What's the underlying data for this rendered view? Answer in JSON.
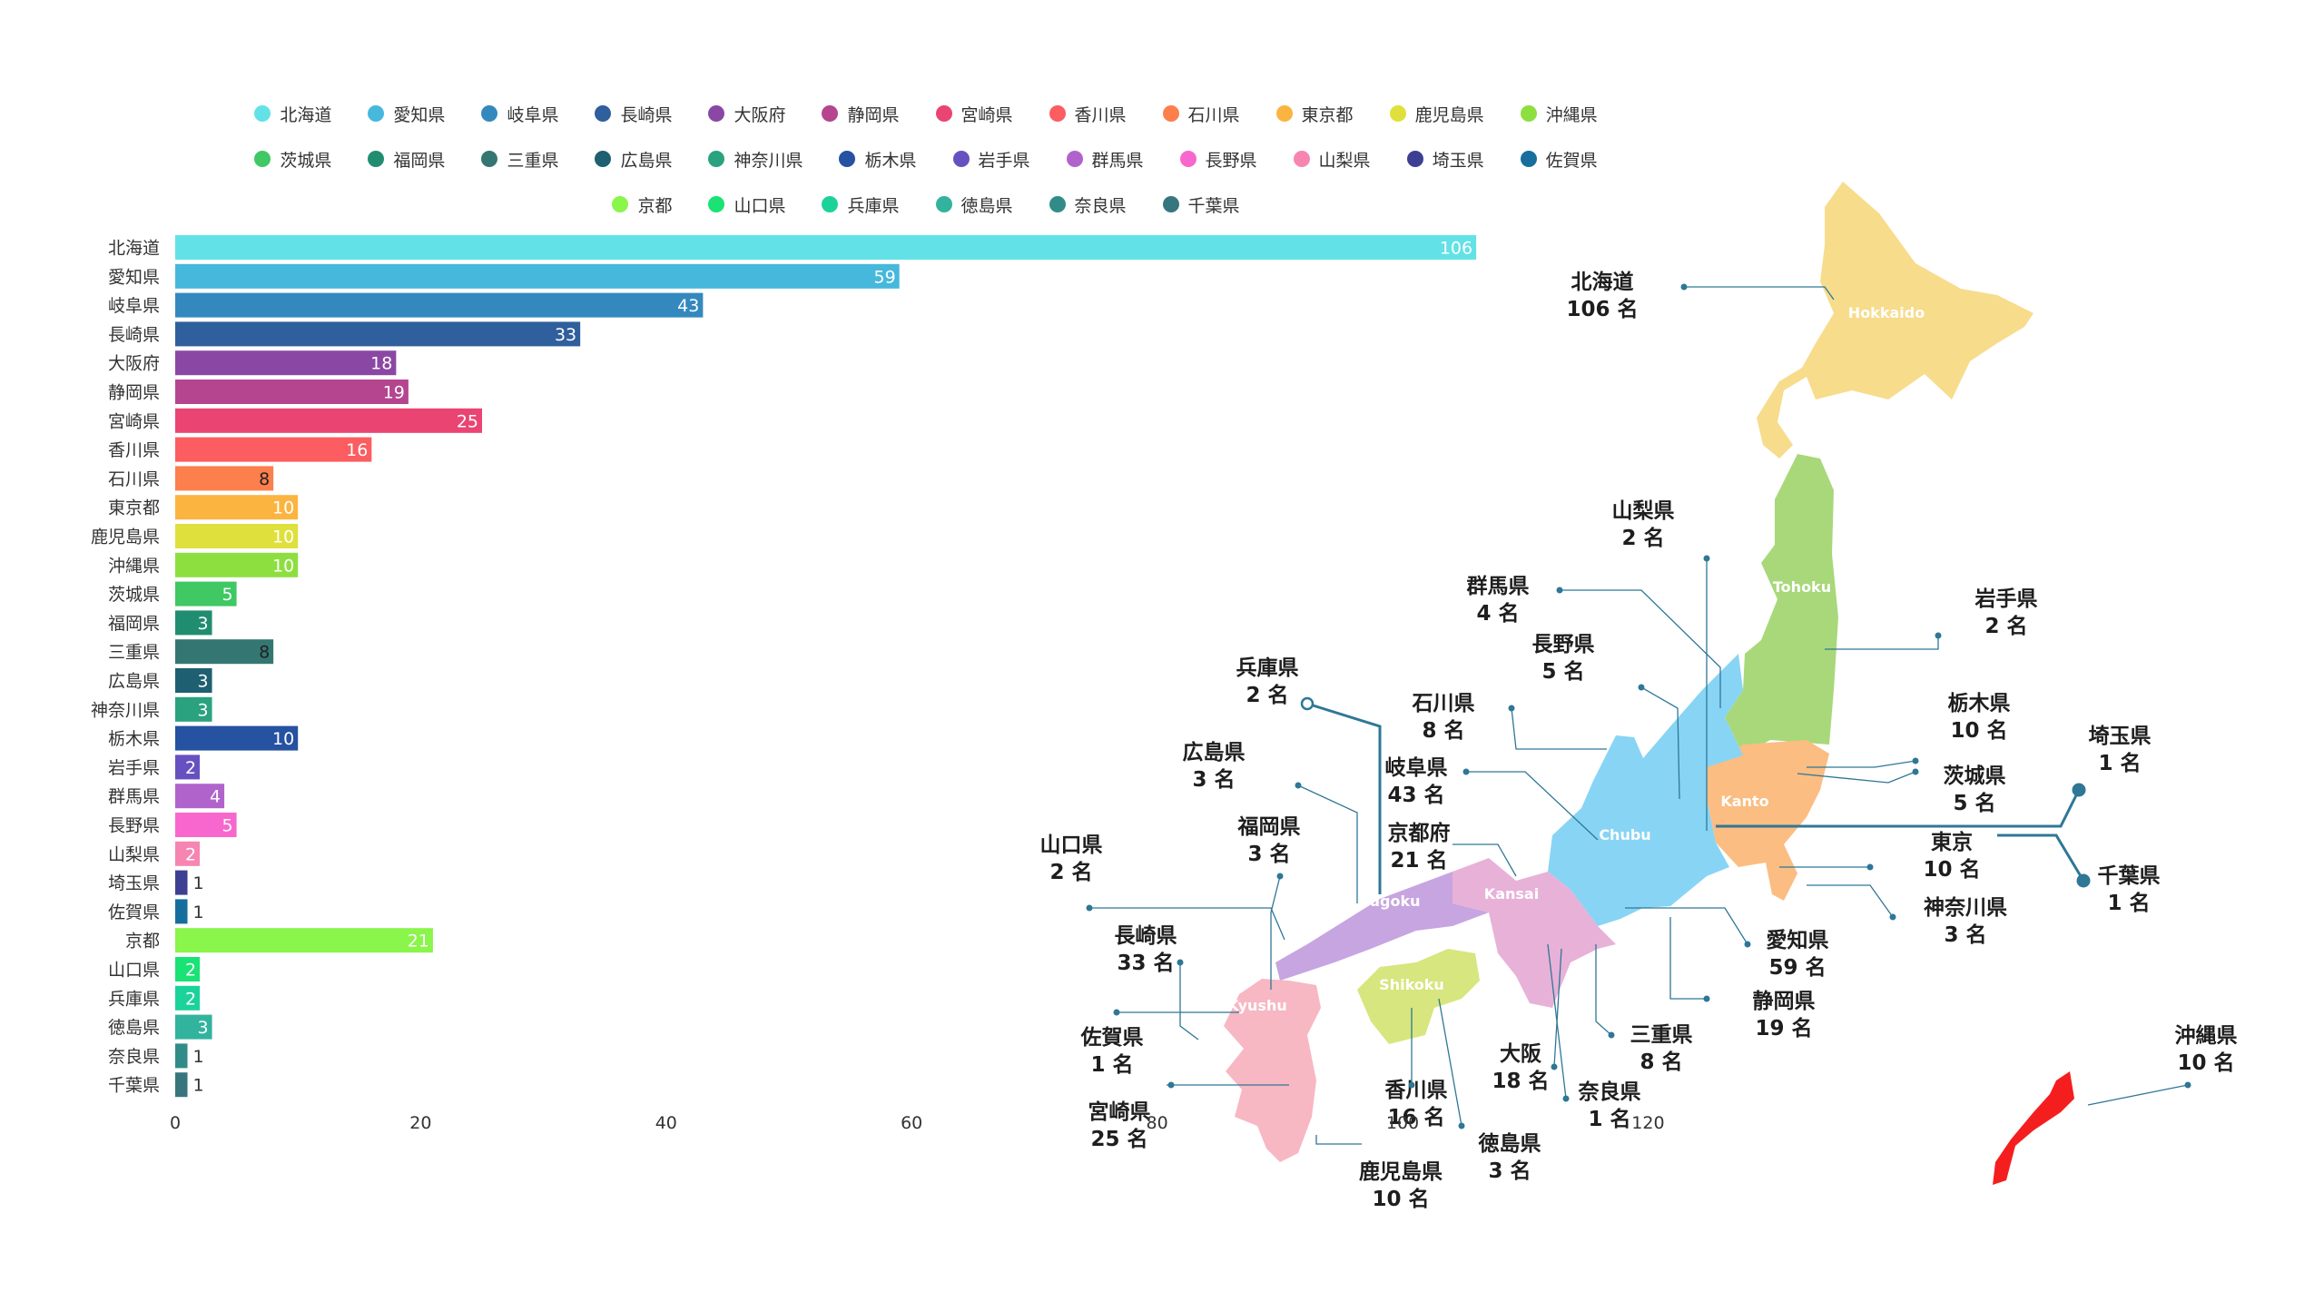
{
  "chart_data": [
    {
      "type": "bar",
      "orientation": "horizontal",
      "categories": [
        "北海道",
        "愛知県",
        "岐阜県",
        "長崎県",
        "大阪府",
        "静岡県",
        "宮崎県",
        "香川県",
        "石川県",
        "東京都",
        "鹿児島県",
        "沖縄県",
        "茨城県",
        "福岡県",
        "三重県",
        "広島県",
        "神奈川県",
        "栃木県",
        "岩手県",
        "群馬県",
        "長野県",
        "山梨県",
        "埼玉県",
        "佐賀県",
        "京都",
        "山口県",
        "兵庫県",
        "徳島県",
        "奈良県",
        "千葉県"
      ],
      "values": [
        106,
        59,
        43,
        33,
        18,
        19,
        25,
        16,
        8,
        10,
        10,
        10,
        5,
        3,
        8,
        3,
        3,
        10,
        2,
        4,
        5,
        2,
        1,
        1,
        21,
        2,
        2,
        3,
        1,
        1
      ],
      "colors": [
        "#62e2e6",
        "#46b8dc",
        "#3389be",
        "#2f5f9c",
        "#8a48a4",
        "#b5458f",
        "#ea4473",
        "#fb5d60",
        "#fc7f4c",
        "#fcb440",
        "#dfe03c",
        "#8ddf3f",
        "#3fc863",
        "#218d70",
        "#347772",
        "#1f5f72",
        "#2ba27f",
        "#2552a1",
        "#6751c0",
        "#b163cc",
        "#f867cd",
        "#f785b2",
        "#3d3f92",
        "#166e9e",
        "#8af54b",
        "#1ae275",
        "#1bd39a",
        "#32b39e",
        "#318c89",
        "#38767e"
      ],
      "xticks": [
        "0",
        "20",
        "40",
        "60",
        "80",
        "100",
        "120"
      ],
      "xlim": [
        0,
        120
      ],
      "legend": "top",
      "grid": false
    }
  ],
  "map": {
    "regions": [
      {
        "name": "Hokkaido",
        "color": "#f7dc8c"
      },
      {
        "name": "Tohoku",
        "color": "#a8d87a"
      },
      {
        "name": "Kanto",
        "color": "#fbbd82"
      },
      {
        "name": "Chubu",
        "color": "#88d4f5"
      },
      {
        "name": "Kansai",
        "color": "#e8b1d8"
      },
      {
        "name": "Chugoku",
        "color": "#c7a5e0"
      },
      {
        "name": "Shikoku",
        "color": "#d7e67e"
      },
      {
        "name": "Kyushu",
        "color": "#f7b7c3"
      },
      {
        "name": "",
        "color": "#f51e1e"
      }
    ],
    "callouts": [
      {
        "name": "北海道",
        "count": "106 名"
      },
      {
        "name": "山梨県",
        "count": "2 名"
      },
      {
        "name": "群馬県",
        "count": "4 名"
      },
      {
        "name": "岩手県",
        "count": "2 名"
      },
      {
        "name": "長野県",
        "count": "5 名"
      },
      {
        "name": "兵庫県",
        "count": "2 名"
      },
      {
        "name": "石川県",
        "count": "8 名"
      },
      {
        "name": "栃木県",
        "count": "10 名"
      },
      {
        "name": "埼玉県",
        "count": "1 名"
      },
      {
        "name": "岐阜県",
        "count": "43 名"
      },
      {
        "name": "広島県",
        "count": "3 名"
      },
      {
        "name": "茨城県",
        "count": "5 名"
      },
      {
        "name": "京都府",
        "count": "21 名"
      },
      {
        "name": "福岡県",
        "count": "3 名"
      },
      {
        "name": "山口県",
        "count": "2 名"
      },
      {
        "name": "東京",
        "count": "10 名"
      },
      {
        "name": "千葉県",
        "count": "1 名"
      },
      {
        "name": "神奈川県",
        "count": "3 名"
      },
      {
        "name": "長崎県",
        "count": "33 名"
      },
      {
        "name": "愛知県",
        "count": "59 名"
      },
      {
        "name": "静岡県",
        "count": "19 名"
      },
      {
        "name": "佐賀県",
        "count": "1 名"
      },
      {
        "name": "三重県",
        "count": "8 名"
      },
      {
        "name": "沖縄県",
        "count": "10 名"
      },
      {
        "name": "香川県",
        "count": "16 名"
      },
      {
        "name": "大阪",
        "count": "18 名"
      },
      {
        "name": "奈良県",
        "count": "1 名"
      },
      {
        "name": "宮崎県",
        "count": "25 名"
      },
      {
        "name": "徳島県",
        "count": "3 名"
      },
      {
        "name": "鹿児島県",
        "count": "10 名"
      }
    ]
  }
}
